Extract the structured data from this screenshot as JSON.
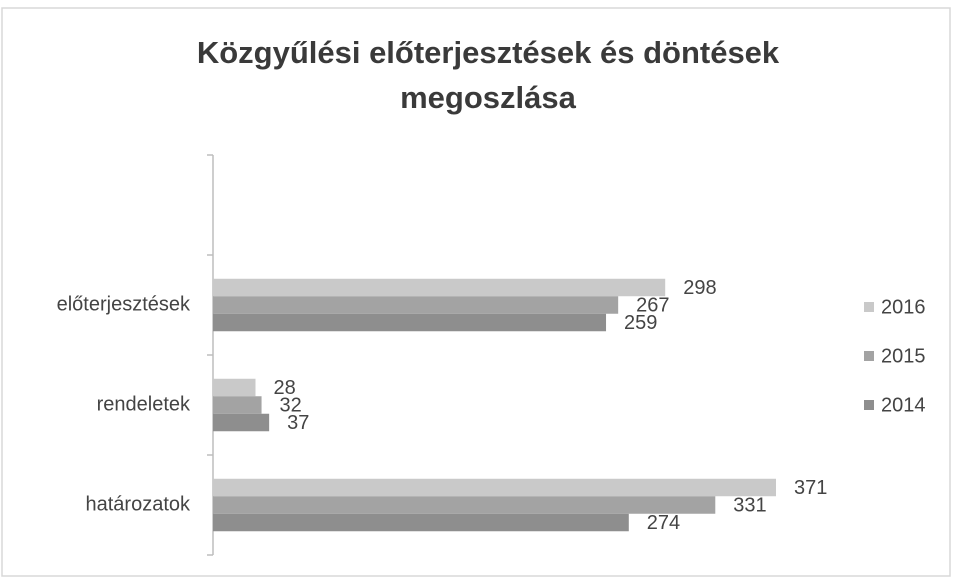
{
  "chart_data": {
    "type": "bar",
    "orientation": "horizontal",
    "title": "Közgyűlési előterjesztések és döntések megoszlása",
    "categories": [
      null,
      "előterjesztések",
      "rendeletek",
      "határozatok"
    ],
    "series": [
      {
        "name": "2016",
        "color": "#c9c9c9",
        "values": [
          null,
          298,
          28,
          371
        ]
      },
      {
        "name": "2015",
        "color": "#a3a3a3",
        "values": [
          null,
          267,
          32,
          331
        ]
      },
      {
        "name": "2014",
        "color": "#8e8e8e",
        "values": [
          null,
          259,
          37,
          274
        ]
      }
    ],
    "xlim": [
      0,
      400
    ],
    "legend": "right"
  }
}
